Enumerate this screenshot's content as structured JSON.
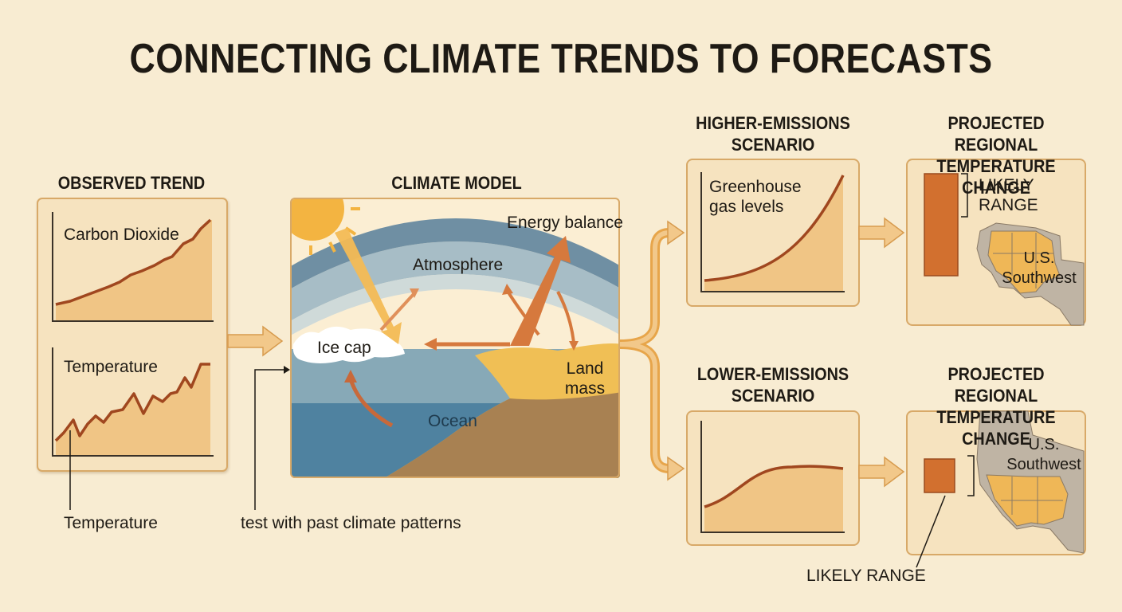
{
  "title": "CONNECTING CLIMATE TRENDS TO FORECASTS",
  "observed": {
    "heading": "OBSERVED TREND",
    "co2_label": "Carbon Dioxide",
    "temp_label": "Temperature",
    "callout_label": "Temperature"
  },
  "model": {
    "heading": "CLIMATE MODEL",
    "energy_balance": "Energy balance",
    "atmosphere": "Atmosphere",
    "ice_cap": "Ice cap",
    "land_mass": "Land mass",
    "ocean": "Ocean",
    "test_note": "test with past climate patterns"
  },
  "higher": {
    "heading": "HIGHER-EMISSIONS SCENARIO",
    "chart_label": "Greenhouse gas levels"
  },
  "lower": {
    "heading": "LOWER-EMISSIONS SCENARIO"
  },
  "projection_top": {
    "heading": "PROJECTED REGIONAL TEMPERATURE CHANGE",
    "range_label": "LIKELY RANGE",
    "region_label": "U.S. Southwest"
  },
  "projection_bottom": {
    "heading": "PROJECTED REGIONAL TEMPERATURE CHANGE",
    "range_label": "LIKELY RANGE",
    "region_label": "U.S. Southwest"
  },
  "colors": {
    "background": "#f8ecd2",
    "panel": "#f6e3bf",
    "trend_line": "#a0471f",
    "range_bar": "#d2702f",
    "arrow": "#e7a54a",
    "ocean": "#5d8ea6"
  }
}
